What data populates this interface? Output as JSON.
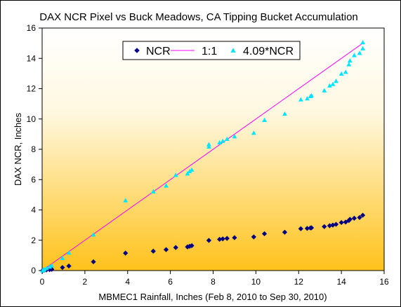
{
  "chart_data": {
    "type": "scatter",
    "title": "DAX NCR Pixel vs Buck Meadows, CA Tipping Bucket Accumulation",
    "xlabel": "MBMEC1 Rainfall, Inches (Feb 8, 2010 to Sep 30, 2010)",
    "ylabel": "DAX NCR, Inches",
    "xlim": [
      0,
      16
    ],
    "ylim": [
      0,
      16
    ],
    "xticks": [
      0,
      2,
      4,
      6,
      8,
      10,
      12,
      14,
      16
    ],
    "yticks": [
      0,
      2,
      4,
      6,
      8,
      10,
      12,
      14,
      16
    ],
    "legend_position": "top-center",
    "grid": false,
    "plot_background": "gradient white-to-yellow",
    "series": [
      {
        "name": "NCR",
        "marker": "diamond",
        "color": "#000080",
        "x": [
          0.02,
          0.05,
          0.1,
          0.2,
          0.35,
          0.45,
          0.95,
          1.25,
          2.4,
          3.9,
          5.2,
          5.8,
          6.25,
          6.8,
          6.9,
          7.0,
          7.8,
          8.3,
          8.45,
          8.65,
          9.0,
          9.9,
          10.4,
          11.35,
          12.1,
          12.4,
          12.55,
          12.6,
          13.2,
          13.45,
          13.6,
          13.75,
          14.0,
          14.2,
          14.35,
          14.4,
          14.6,
          14.85,
          15.0
        ],
        "y": [
          0.0,
          0.01,
          0.02,
          0.04,
          0.06,
          0.08,
          0.2,
          0.3,
          0.58,
          1.15,
          1.28,
          1.38,
          1.52,
          1.56,
          1.6,
          1.64,
          1.99,
          2.06,
          2.09,
          2.12,
          2.17,
          2.22,
          2.43,
          2.53,
          2.76,
          2.78,
          2.81,
          2.82,
          2.9,
          2.96,
          3.0,
          3.05,
          3.17,
          3.2,
          3.3,
          3.38,
          3.45,
          3.5,
          3.65
        ]
      },
      {
        "name": "1:1",
        "marker": "line",
        "color": "#ff00ff",
        "x": [
          0,
          15
        ],
        "y": [
          0,
          15
        ]
      },
      {
        "name": "4.09*NCR",
        "marker": "triangle",
        "color": "#00e5ff",
        "x": [
          0.02,
          0.05,
          0.1,
          0.2,
          0.35,
          0.45,
          0.95,
          1.25,
          2.4,
          3.9,
          5.2,
          5.8,
          6.25,
          6.8,
          6.9,
          7.0,
          7.8,
          7.8,
          8.3,
          8.45,
          8.65,
          9.0,
          9.9,
          10.4,
          11.35,
          12.1,
          12.4,
          12.55,
          12.6,
          13.2,
          13.45,
          13.6,
          13.75,
          14.0,
          14.2,
          14.35,
          14.4,
          14.6,
          14.85,
          15.0,
          15.0
        ],
        "y": [
          0.0,
          0.04,
          0.08,
          0.16,
          0.25,
          0.33,
          0.82,
          1.18,
          2.37,
          4.63,
          5.22,
          5.6,
          6.3,
          6.4,
          6.55,
          6.65,
          8.17,
          8.32,
          8.45,
          8.55,
          8.68,
          8.85,
          9.08,
          9.93,
          10.34,
          11.28,
          11.35,
          11.5,
          11.55,
          11.88,
          12.2,
          12.3,
          12.5,
          12.98,
          13.1,
          13.6,
          13.85,
          14.2,
          14.35,
          14.65,
          15.05
        ]
      }
    ]
  }
}
